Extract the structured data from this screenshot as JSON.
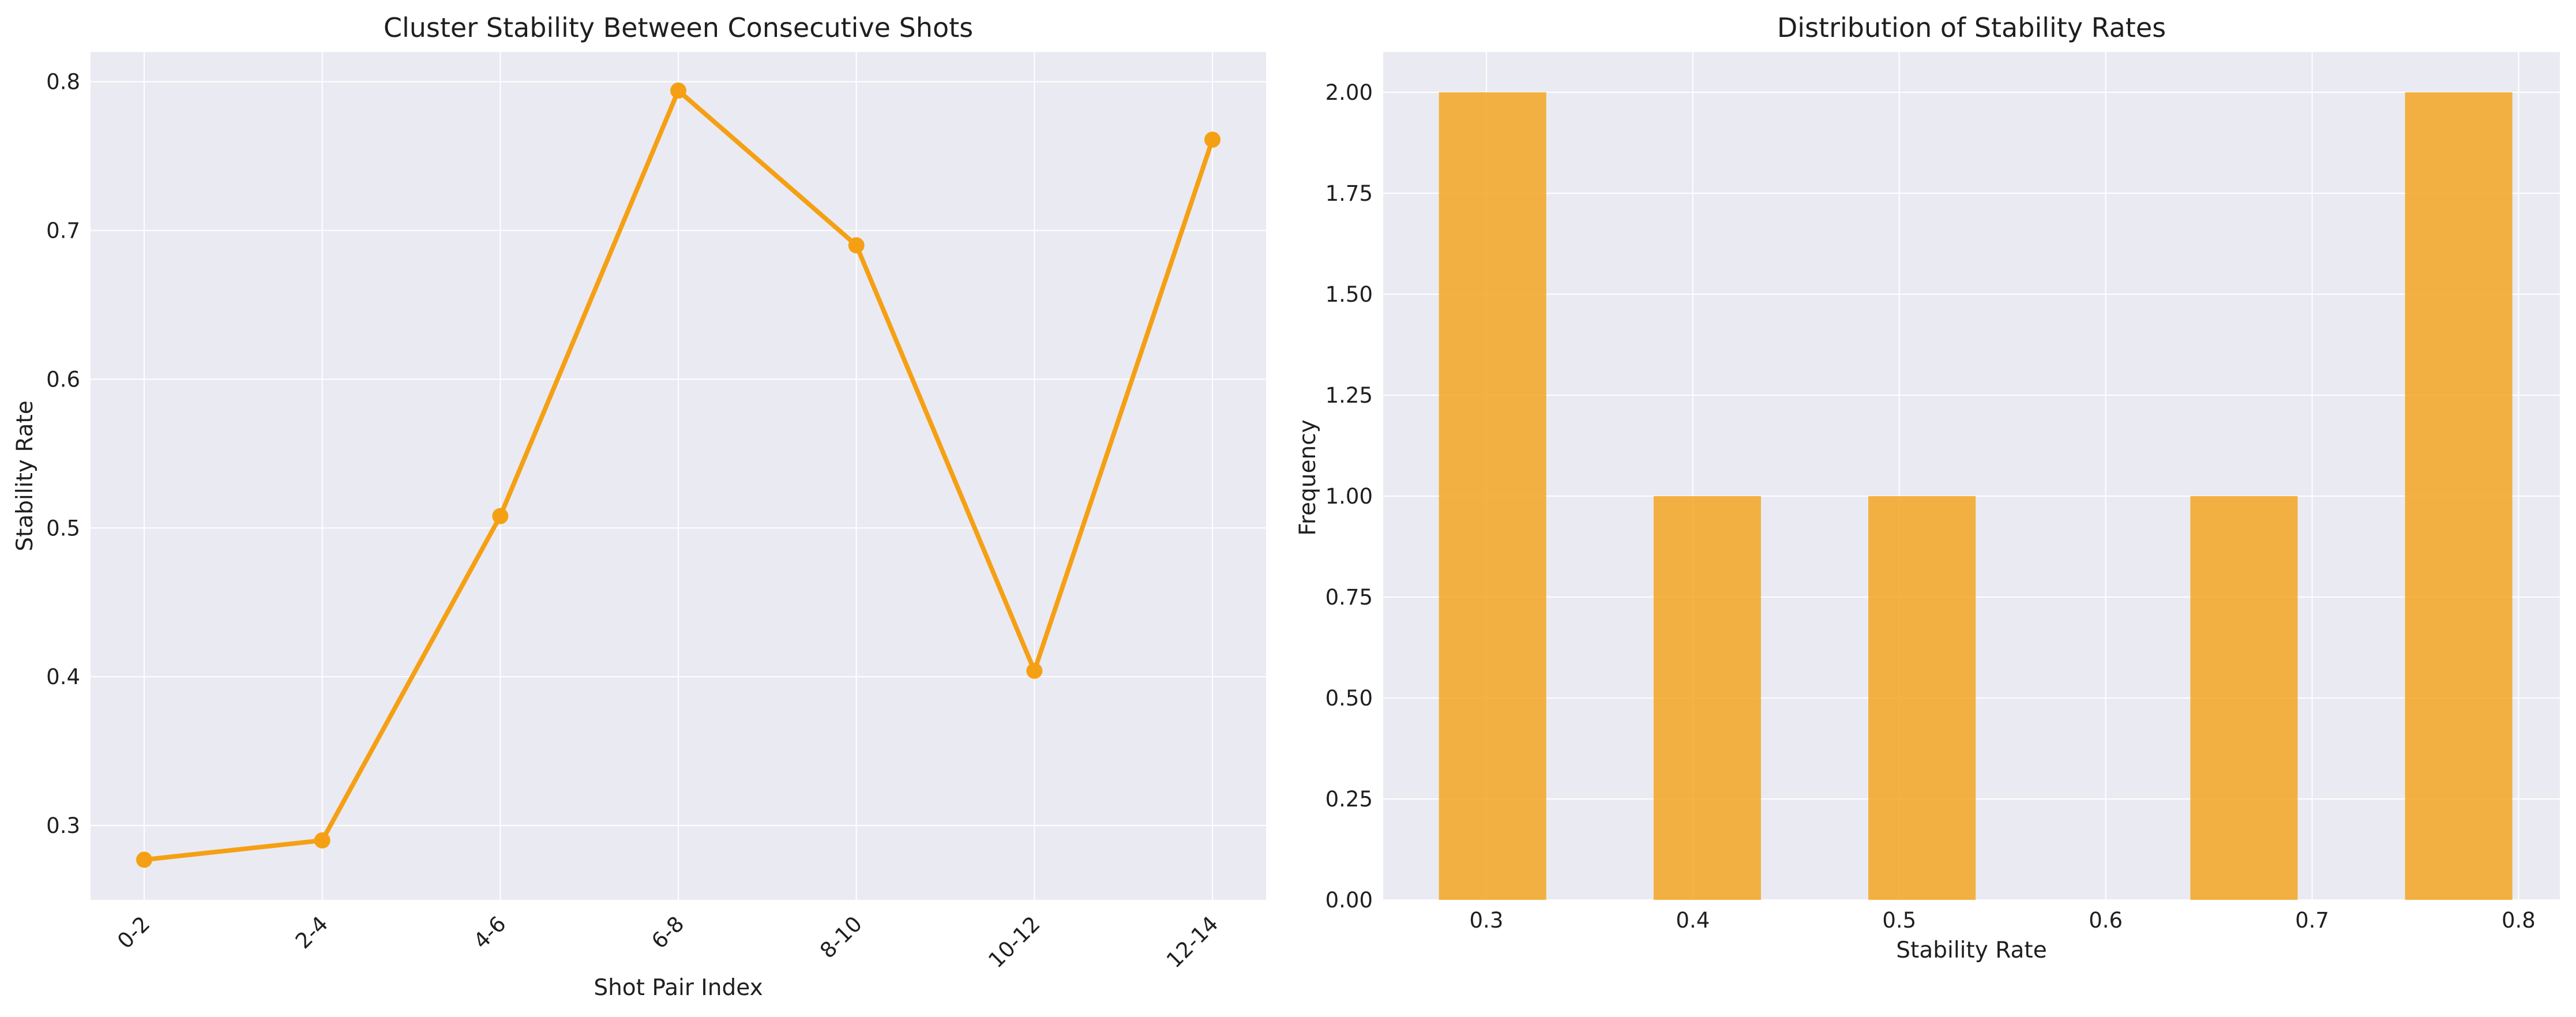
{
  "chart_data": [
    {
      "type": "line",
      "title": "Cluster Stability Between Consecutive Shots",
      "xlabel": "Shot Pair Index",
      "ylabel": "Stability Rate",
      "categories": [
        "0-2",
        "2-4",
        "4-6",
        "6-8",
        "8-10",
        "10-12",
        "12-14"
      ],
      "series": [
        {
          "values": [
            0.277,
            0.29,
            0.508,
            0.794,
            0.69,
            0.404,
            0.761
          ],
          "color": "#f5a014"
        }
      ],
      "ylim": [
        0.25,
        0.82
      ],
      "yticks": [
        "0.3",
        "0.4",
        "0.5",
        "0.6",
        "0.7",
        "0.8"
      ],
      "ytick_values": [
        0.3,
        0.4,
        0.5,
        0.6,
        0.7,
        0.8
      ],
      "grid": true
    },
    {
      "type": "bar",
      "title": "Distribution of Stability Rates",
      "xlabel": "Stability Rate",
      "ylabel": "Frequency",
      "bins": [
        {
          "start": 0.277,
          "end": 0.329,
          "count": 2
        },
        {
          "start": 0.381,
          "end": 0.433,
          "count": 1
        },
        {
          "start": 0.485,
          "end": 0.537,
          "count": 1
        },
        {
          "start": 0.641,
          "end": 0.693,
          "count": 1
        },
        {
          "start": 0.745,
          "end": 0.797,
          "count": 2
        }
      ],
      "xlim": [
        0.25,
        0.82
      ],
      "ylim": [
        0,
        2.1
      ],
      "xticks": [
        "0.3",
        "0.4",
        "0.5",
        "0.6",
        "0.7",
        "0.8"
      ],
      "xtick_values": [
        0.3,
        0.4,
        0.5,
        0.6,
        0.7,
        0.8
      ],
      "yticks": [
        "0.00",
        "0.25",
        "0.50",
        "0.75",
        "1.00",
        "1.25",
        "1.50",
        "1.75",
        "2.00"
      ],
      "ytick_values": [
        0,
        0.25,
        0.5,
        0.75,
        1.0,
        1.25,
        1.5,
        1.75,
        2.0
      ],
      "color": "#f5a623",
      "opacity": 0.85,
      "grid": true
    }
  ]
}
